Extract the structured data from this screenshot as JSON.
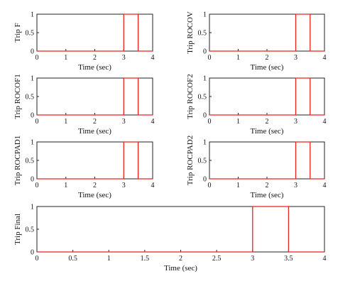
{
  "colors": {
    "signal": "#e8231c",
    "frame": "#222222",
    "text": "#111111"
  },
  "chart_data": [
    {
      "type": "line",
      "ylabel": "Trip F",
      "xlabel": "Time (sec)",
      "xlim": [
        0,
        4
      ],
      "ylim": [
        0,
        1
      ],
      "xticks": [
        0,
        1,
        2,
        3,
        4
      ],
      "xtick_labels": [
        "0",
        "1",
        "2",
        "3",
        "4"
      ],
      "yticks": [
        0,
        0.5,
        1
      ],
      "ytick_labels": [
        "0",
        "0.5",
        "1"
      ],
      "series": [
        {
          "x": [
            0,
            3.0,
            3.0,
            3.5,
            3.5,
            4
          ],
          "y": [
            0,
            0,
            1,
            1,
            0,
            0
          ]
        }
      ]
    },
    {
      "type": "line",
      "ylabel": "Trip ROCOV",
      "xlabel": "Time (sec)",
      "xlim": [
        0,
        4
      ],
      "ylim": [
        0,
        1
      ],
      "xticks": [
        0,
        1,
        2,
        3,
        4
      ],
      "xtick_labels": [
        "0",
        "1",
        "2",
        "3",
        "4"
      ],
      "yticks": [
        0,
        0.5,
        1
      ],
      "ytick_labels": [
        "0",
        "0.5",
        "1"
      ],
      "series": [
        {
          "x": [
            0,
            3.0,
            3.0,
            3.5,
            3.5,
            4
          ],
          "y": [
            0,
            0,
            1,
            1,
            0,
            0
          ]
        }
      ]
    },
    {
      "type": "line",
      "ylabel": "Trip ROCOF1",
      "xlabel": "Time (sec)",
      "xlim": [
        0,
        4
      ],
      "ylim": [
        0,
        1
      ],
      "xticks": [
        0,
        1,
        2,
        3,
        4
      ],
      "xtick_labels": [
        "0",
        "1",
        "2",
        "3",
        "4"
      ],
      "yticks": [
        0,
        0.5,
        1
      ],
      "ytick_labels": [
        "0",
        "0.5",
        "1"
      ],
      "series": [
        {
          "x": [
            0,
            3.0,
            3.0,
            3.5,
            3.5,
            4
          ],
          "y": [
            0,
            0,
            1,
            1,
            0,
            0
          ]
        }
      ]
    },
    {
      "type": "line",
      "ylabel": "Trip ROCOF2",
      "xlabel": "Time (sec)",
      "xlim": [
        0,
        4
      ],
      "ylim": [
        0,
        1
      ],
      "xticks": [
        0,
        1,
        2,
        3,
        4
      ],
      "xtick_labels": [
        "0",
        "1",
        "2",
        "3",
        "4"
      ],
      "yticks": [
        0,
        0.5,
        1
      ],
      "ytick_labels": [
        "0",
        "0.5",
        "1"
      ],
      "series": [
        {
          "x": [
            0,
            3.0,
            3.0,
            3.5,
            3.5,
            4
          ],
          "y": [
            0,
            0,
            1,
            1,
            0,
            0
          ]
        }
      ]
    },
    {
      "type": "line",
      "ylabel": "Trip ROCPAD1",
      "xlabel": "Time (sec)",
      "xlim": [
        0,
        4
      ],
      "ylim": [
        0,
        1
      ],
      "xticks": [
        0,
        1,
        2,
        3,
        4
      ],
      "xtick_labels": [
        "0",
        "1",
        "2",
        "3",
        "4"
      ],
      "yticks": [
        0,
        0.5,
        1
      ],
      "ytick_labels": [
        "0",
        "0.5",
        "1"
      ],
      "series": [
        {
          "x": [
            0,
            3.0,
            3.0,
            3.5,
            3.5,
            4
          ],
          "y": [
            0,
            0,
            1,
            1,
            0,
            0
          ]
        }
      ]
    },
    {
      "type": "line",
      "ylabel": "Trip ROCPAD2",
      "xlabel": "Time (sec)",
      "xlim": [
        0,
        4
      ],
      "ylim": [
        0,
        1
      ],
      "xticks": [
        0,
        1,
        2,
        3,
        4
      ],
      "xtick_labels": [
        "0",
        "1",
        "2",
        "3",
        "4"
      ],
      "yticks": [
        0,
        0.5,
        1
      ],
      "ytick_labels": [
        "0",
        "0.5",
        "1"
      ],
      "series": [
        {
          "x": [
            0,
            3.0,
            3.0,
            3.5,
            3.5,
            4
          ],
          "y": [
            0,
            0,
            1,
            1,
            0,
            0
          ]
        }
      ]
    },
    {
      "type": "line",
      "ylabel": "Trip Final",
      "xlabel": "Time (sec)",
      "xlim": [
        0,
        4
      ],
      "ylim": [
        0,
        1
      ],
      "xticks": [
        0,
        0.5,
        1,
        1.5,
        2,
        2.5,
        3,
        3.5,
        4
      ],
      "xtick_labels": [
        "0",
        "0.5",
        "1",
        "1.5",
        "2",
        "2.5",
        "3",
        "3.5",
        "4"
      ],
      "yticks": [
        0,
        0.5,
        1
      ],
      "ytick_labels": [
        "0",
        "0.5",
        "1"
      ],
      "series": [
        {
          "x": [
            0,
            3.0,
            3.0,
            3.5,
            3.5,
            4
          ],
          "y": [
            0,
            0,
            1,
            1,
            0,
            0
          ]
        }
      ]
    }
  ]
}
